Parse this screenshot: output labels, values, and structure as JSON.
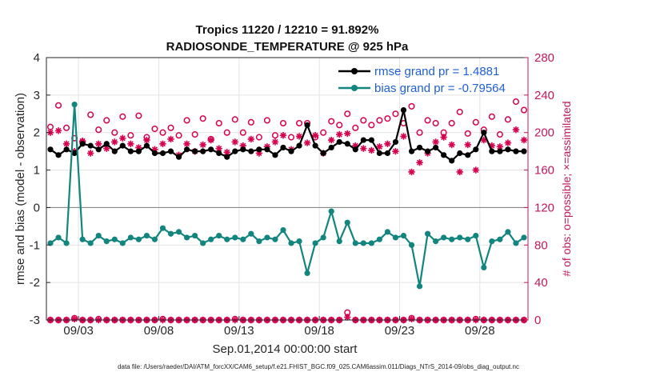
{
  "chart_data": {
    "type": "line",
    "title_line1": "Tropics 11220 / 12210 = 91.892%",
    "title_line2": "RADIOSONDE_TEMPERATURE @ 925 hPa",
    "ylabel_left": "rmse and bias (model - observation)",
    "ylabel_right": "# of obs: o=possible; ×=assimilated",
    "xlabel": "Sep.01,2014 00:00:00 start",
    "footer": "data file: /Users/raeder/DAI/ATM_forcXX/CAM6_setup/f.e21.FHIST_BGC.f09_025.CAM6assim.011/Diags_NTrS_2014-09/obs_diag_output.nc",
    "x_range": [
      1.0,
      31.0
    ],
    "ylim_left": [
      -3,
      4
    ],
    "ylim_right": [
      0,
      280
    ],
    "yticks_left": [
      "4",
      "3",
      "2",
      "1",
      "0",
      "-1",
      "-2",
      "-3"
    ],
    "yticks_right": [
      "280",
      "240",
      "200",
      "160",
      "120",
      "80",
      "40",
      "0"
    ],
    "x_tick_values": [
      3,
      8,
      13,
      18,
      23,
      28
    ],
    "x_tick_labels": [
      "09/03",
      "09/08",
      "09/13",
      "09/18",
      "09/23",
      "09/28"
    ],
    "legend": [
      "rmse grand pr = 1.4881",
      "bias grand pr = -0.79564"
    ],
    "colors": {
      "rmse": "#000000",
      "bias": "#12857f",
      "obs": "#d6004f",
      "axis_right": "#c2185b",
      "legend_text": "#1f5fd6"
    },
    "series": [
      {
        "name": "rmse",
        "x": [
          1.25,
          1.75,
          2.25,
          2.75,
          3.25,
          3.75,
          4.25,
          4.75,
          5.25,
          5.75,
          6.25,
          6.75,
          7.25,
          7.75,
          8.25,
          8.75,
          9.25,
          9.75,
          10.25,
          10.75,
          11.25,
          11.75,
          12.25,
          12.75,
          13.25,
          13.75,
          14.25,
          14.75,
          15.25,
          15.75,
          16.25,
          16.75,
          17.25,
          17.75,
          18.25,
          18.75,
          19.25,
          19.75,
          20.25,
          20.75,
          21.25,
          21.75,
          22.25,
          22.75,
          23.25,
          23.75,
          24.25,
          24.75,
          25.25,
          25.75,
          26.25,
          26.75,
          27.25,
          27.75,
          28.25,
          28.75,
          29.25,
          29.75,
          30.25,
          30.75
        ],
        "values": [
          1.55,
          1.4,
          1.55,
          1.45,
          1.7,
          1.65,
          1.55,
          1.7,
          1.5,
          1.65,
          1.5,
          1.5,
          1.65,
          1.45,
          1.45,
          1.5,
          1.35,
          1.55,
          1.5,
          1.5,
          1.55,
          1.45,
          1.35,
          1.5,
          1.55,
          1.5,
          1.55,
          1.55,
          1.4,
          1.6,
          1.5,
          1.65,
          2.2,
          1.65,
          1.45,
          1.6,
          1.75,
          1.7,
          1.55,
          1.8,
          1.8,
          1.45,
          1.45,
          1.75,
          2.6,
          1.5,
          1.6,
          1.5,
          1.6,
          1.4,
          1.25,
          1.45,
          1.4,
          1.55,
          2.0,
          1.5,
          1.5,
          1.55,
          1.5,
          1.5
        ]
      },
      {
        "name": "bias",
        "x": [
          1.25,
          1.75,
          2.25,
          2.75,
          3.25,
          3.75,
          4.25,
          4.75,
          5.25,
          5.75,
          6.25,
          6.75,
          7.25,
          7.75,
          8.25,
          8.75,
          9.25,
          9.75,
          10.25,
          10.75,
          11.25,
          11.75,
          12.25,
          12.75,
          13.25,
          13.75,
          14.25,
          14.75,
          15.25,
          15.75,
          16.25,
          16.75,
          17.25,
          17.75,
          18.25,
          18.75,
          19.25,
          19.75,
          20.25,
          20.75,
          21.25,
          21.75,
          22.25,
          22.75,
          23.25,
          23.75,
          24.25,
          24.75,
          25.25,
          25.75,
          26.25,
          26.75,
          27.25,
          27.75,
          28.25,
          28.75,
          29.25,
          29.75,
          30.25,
          30.75
        ],
        "values": [
          -0.95,
          -0.8,
          -0.95,
          2.75,
          -0.85,
          -0.95,
          -0.75,
          -0.9,
          -0.85,
          -0.95,
          -0.8,
          -0.85,
          -0.75,
          -0.85,
          -0.55,
          -0.7,
          -0.65,
          -0.8,
          -0.75,
          -0.95,
          -0.85,
          -0.75,
          -0.85,
          -0.8,
          -0.85,
          -0.7,
          -0.9,
          -0.8,
          -0.85,
          -0.6,
          -0.95,
          -0.9,
          -1.75,
          -0.95,
          -0.8,
          -0.1,
          -0.9,
          -0.4,
          -0.95,
          -0.95,
          -0.95,
          -0.85,
          -0.65,
          -0.8,
          -0.75,
          -1.0,
          -2.1,
          -0.7,
          -0.9,
          -0.8,
          -0.85,
          -0.8,
          -0.85,
          -0.75,
          -1.6,
          -0.9,
          -0.85,
          -0.65,
          -0.95,
          -0.8
        ]
      },
      {
        "name": "obs_possible",
        "x": [
          1.25,
          1.75,
          2.25,
          2.75,
          3.25,
          3.75,
          4.25,
          4.75,
          5.25,
          5.75,
          6.25,
          6.75,
          7.25,
          7.75,
          8.25,
          8.75,
          9.25,
          9.75,
          10.25,
          10.75,
          11.25,
          11.75,
          12.25,
          12.75,
          13.25,
          13.75,
          14.25,
          14.75,
          15.25,
          15.75,
          16.25,
          16.75,
          17.25,
          17.75,
          18.25,
          18.75,
          19.25,
          19.75,
          20.25,
          20.75,
          21.25,
          21.75,
          22.25,
          22.75,
          23.25,
          23.75,
          24.25,
          24.75,
          25.25,
          25.75,
          26.25,
          26.75,
          27.25,
          27.75,
          28.25,
          28.75,
          29.25,
          29.75,
          30.25,
          30.75
        ],
        "values": [
          206,
          229,
          205,
          194,
          190,
          219,
          203,
          213,
          200,
          217,
          197,
          218,
          195,
          204,
          200,
          205,
          197,
          213,
          198,
          215,
          193,
          210,
          200,
          214,
          200,
          211,
          195,
          213,
          197,
          210,
          195,
          210,
          210,
          195,
          200,
          212,
          208,
          220,
          205,
          213,
          208,
          213,
          215,
          220,
          210,
          228,
          200,
          213,
          210,
          200,
          210,
          222,
          199,
          211,
          203,
          217,
          198,
          214,
          233,
          224
        ]
      },
      {
        "name": "obs_assimilated",
        "x": [
          1.25,
          1.75,
          2.25,
          2.75,
          3.25,
          3.75,
          4.25,
          4.75,
          5.25,
          5.75,
          6.25,
          6.75,
          7.25,
          7.75,
          8.25,
          8.75,
          9.25,
          9.75,
          10.25,
          10.75,
          11.25,
          11.75,
          12.25,
          12.75,
          13.25,
          13.75,
          14.25,
          14.75,
          15.25,
          15.75,
          16.25,
          16.75,
          17.25,
          17.75,
          18.25,
          18.75,
          19.25,
          19.75,
          20.25,
          20.75,
          21.25,
          21.75,
          22.25,
          22.75,
          23.25,
          23.75,
          24.25,
          24.75,
          25.25,
          25.75,
          26.25,
          26.75,
          27.25,
          27.75,
          28.25,
          28.75,
          29.25,
          29.75,
          30.25,
          30.75
        ],
        "values": [
          200,
          202,
          188,
          180,
          191,
          178,
          188,
          183,
          190,
          194,
          188,
          184,
          192,
          182,
          188,
          193,
          176,
          188,
          180,
          187,
          192,
          183,
          179,
          190,
          186,
          193,
          178,
          185,
          190,
          197,
          182,
          196,
          189,
          197,
          178,
          192,
          198,
          199,
          186,
          183,
          181,
          185,
          188,
          180,
          196,
          158,
          168,
          178,
          190,
          195,
          187,
          158,
          187,
          160,
          192,
          186,
          185,
          189,
          203,
          192
        ]
      },
      {
        "name": "obs_possible_bottom",
        "x": [
          1.25,
          1.75,
          2.25,
          2.75,
          3.25,
          3.75,
          4.25,
          4.75,
          5.25,
          5.75,
          6.25,
          6.75,
          7.25,
          7.75,
          8.25,
          8.75,
          9.25,
          9.75,
          10.25,
          10.75,
          11.25,
          11.75,
          12.25,
          12.75,
          13.25,
          13.75,
          14.25,
          14.75,
          15.25,
          15.75,
          16.25,
          16.75,
          17.25,
          17.75,
          18.25,
          18.75,
          19.25,
          19.75,
          20.25,
          20.75,
          21.25,
          21.75,
          22.25,
          22.75,
          23.25,
          23.75,
          24.25,
          24.75,
          25.25,
          25.75,
          26.25,
          26.75,
          27.25,
          27.75,
          28.25,
          28.75,
          29.25,
          29.75,
          30.25,
          30.75
        ],
        "values": [
          0,
          0,
          0,
          2,
          0,
          0,
          1,
          0,
          0,
          0,
          0,
          0,
          0,
          0,
          1,
          0,
          0,
          0,
          0,
          0,
          0,
          0,
          0,
          1,
          0,
          0,
          0,
          0,
          0,
          0,
          0,
          0,
          0,
          0,
          0,
          0,
          0,
          8,
          0,
          0,
          0,
          0,
          0,
          0,
          0,
          2,
          0,
          0,
          0,
          0,
          0,
          0,
          0,
          1,
          0,
          0,
          0,
          0,
          0,
          0
        ]
      },
      {
        "name": "obs_assimilated_bottom",
        "x": [
          1.25,
          1.75,
          2.25,
          2.75,
          3.25,
          3.75,
          4.25,
          4.75,
          5.25,
          5.75,
          6.25,
          6.75,
          7.25,
          7.75,
          8.25,
          8.75,
          9.25,
          9.75,
          10.25,
          10.75,
          11.25,
          11.75,
          12.25,
          12.75,
          13.25,
          13.75,
          14.25,
          14.75,
          15.25,
          15.75,
          16.25,
          16.75,
          17.25,
          17.75,
          18.25,
          18.75,
          19.25,
          19.75,
          20.25,
          20.75,
          21.25,
          21.75,
          22.25,
          22.75,
          23.25,
          23.75,
          24.25,
          24.75,
          25.25,
          25.75,
          26.25,
          26.75,
          27.25,
          27.75,
          28.25,
          28.75,
          29.25,
          29.75,
          30.25,
          30.75
        ],
        "values": [
          0,
          0,
          0,
          1,
          0,
          0,
          0,
          0,
          0,
          0,
          0,
          0,
          0,
          0,
          0,
          0,
          0,
          0,
          0,
          0,
          0,
          0,
          0,
          0,
          0,
          0,
          0,
          0,
          0,
          0,
          0,
          0,
          0,
          0,
          0,
          0,
          0,
          3,
          0,
          0,
          0,
          0,
          0,
          0,
          0,
          1,
          0,
          0,
          0,
          0,
          0,
          0,
          0,
          0,
          0,
          0,
          0,
          0,
          0,
          0
        ]
      }
    ]
  }
}
